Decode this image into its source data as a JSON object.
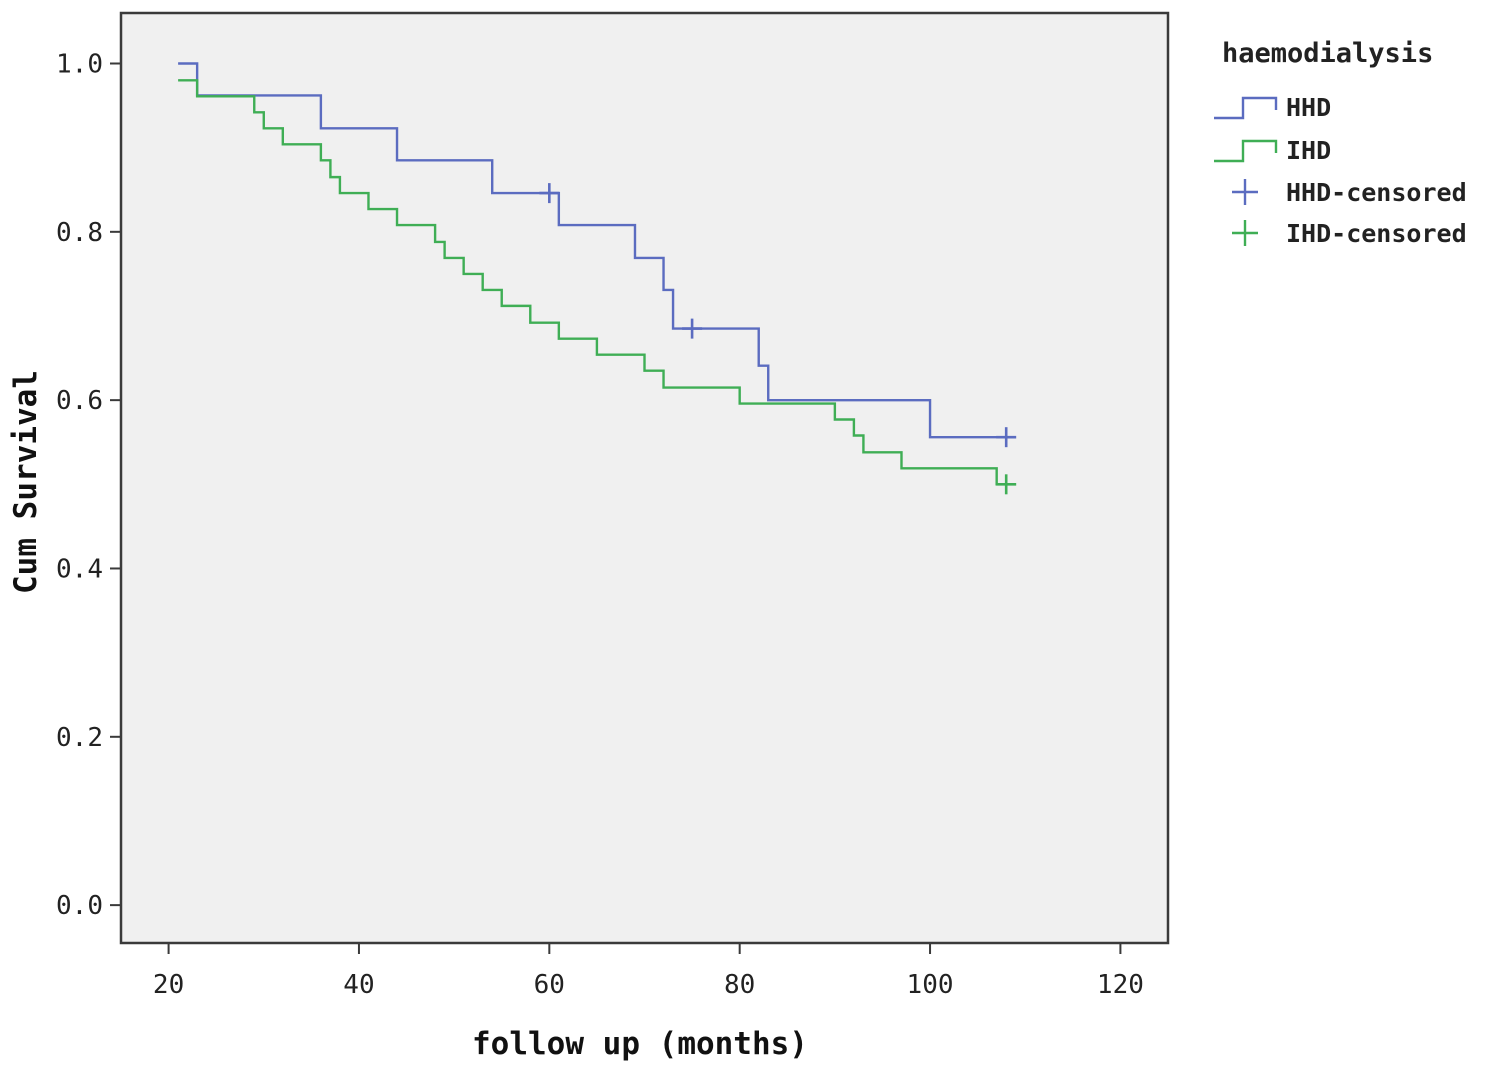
{
  "chart_data": {
    "type": "line",
    "title": "",
    "xlabel": "follow up (months)",
    "ylabel": "Cum Survival",
    "xlim": [
      15,
      125
    ],
    "ylim": [
      -0.045,
      1.06
    ],
    "xticks": [
      20,
      40,
      60,
      80,
      100,
      120
    ],
    "xtick_labels": [
      "20",
      "40",
      "60",
      "80",
      "100",
      "120"
    ],
    "yticks": [
      0.0,
      0.2,
      0.4,
      0.6,
      0.8,
      1.0
    ],
    "ytick_labels": [
      "0.0",
      "0.2",
      "0.4",
      "0.6",
      "0.8",
      "1.0"
    ],
    "grid": false,
    "legend": {
      "title": "haemodialysis",
      "position": "outside-top-right",
      "entries": [
        "HHD",
        "IHD",
        "HHD-censored",
        "IHD-censored"
      ]
    },
    "series": [
      {
        "name": "HHD",
        "color": "#5b6cc0",
        "step": true,
        "x": [
          21,
          23,
          36,
          44,
          54,
          61,
          69,
          72,
          73,
          82,
          83,
          100,
          108
        ],
        "y": [
          1.0,
          0.962,
          0.923,
          0.885,
          0.846,
          0.808,
          0.769,
          0.731,
          0.685,
          0.641,
          0.6,
          0.556,
          0.556
        ]
      },
      {
        "name": "IHD",
        "color": "#3fae55",
        "step": true,
        "x": [
          21,
          23,
          29,
          30,
          32,
          36,
          37,
          38,
          41,
          44,
          48,
          49,
          51,
          53,
          55,
          58,
          61,
          65,
          70,
          72,
          76,
          80,
          87,
          90,
          92,
          93,
          97,
          107,
          108
        ],
        "y": [
          0.98,
          0.961,
          0.942,
          0.923,
          0.904,
          0.885,
          0.865,
          0.846,
          0.827,
          0.808,
          0.788,
          0.769,
          0.75,
          0.731,
          0.712,
          0.692,
          0.673,
          0.654,
          0.635,
          0.615,
          0.615,
          0.596,
          0.596,
          0.577,
          0.558,
          0.538,
          0.519,
          0.5,
          0.5
        ]
      }
    ],
    "censored": [
      {
        "name": "HHD-censored",
        "color": "#5b6cc0",
        "points": [
          [
            60,
            0.846
          ],
          [
            75,
            0.685
          ],
          [
            108,
            0.556
          ]
        ]
      },
      {
        "name": "IHD-censored",
        "color": "#3fae55",
        "points": [
          [
            108,
            0.5
          ]
        ]
      }
    ]
  }
}
